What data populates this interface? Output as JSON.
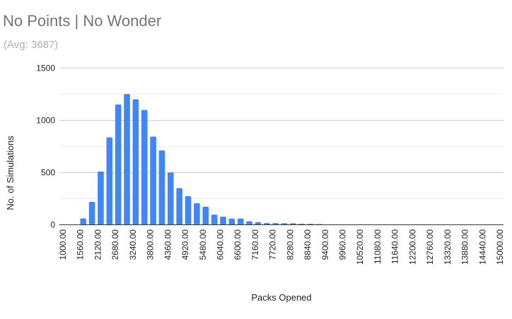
{
  "chart_data": {
    "type": "bar",
    "title": "No Points | No Wonder",
    "subtitle": "(Avg: 3687)",
    "xlabel": "Packs Opened",
    "ylabel": "No. of Simulations",
    "ylim": [
      0,
      1500
    ],
    "yticks": [
      "0",
      "500",
      "1000",
      "1500"
    ],
    "grid": true,
    "bar_color": "#4285f4",
    "x_start": 1000,
    "x_step": 280,
    "xtick_labels": [
      "1000.00",
      "1560.00",
      "2120.00",
      "2680.00",
      "3240.00",
      "3800.00",
      "4360.00",
      "4920.00",
      "5480.00",
      "6040.00",
      "6600.00",
      "7160.00",
      "7720.00",
      "8280.00",
      "8840.00",
      "9400.00",
      "9960.00",
      "10520.00",
      "11080.00",
      "11640.00",
      "12200.00",
      "12760.00",
      "13320.00",
      "13880.00",
      "14440.00",
      "15000.00"
    ],
    "values": [
      0,
      0,
      61,
      220,
      510,
      837,
      1151,
      1252,
      1201,
      1100,
      845,
      712,
      501,
      351,
      274,
      207,
      173,
      97,
      78,
      59,
      59,
      34,
      25,
      16,
      16,
      15,
      14,
      10,
      9,
      7,
      0,
      0,
      0,
      0,
      0,
      0,
      0,
      0,
      0,
      0,
      0,
      0,
      0,
      0,
      0,
      0,
      0,
      0,
      0,
      0,
      0
    ]
  }
}
